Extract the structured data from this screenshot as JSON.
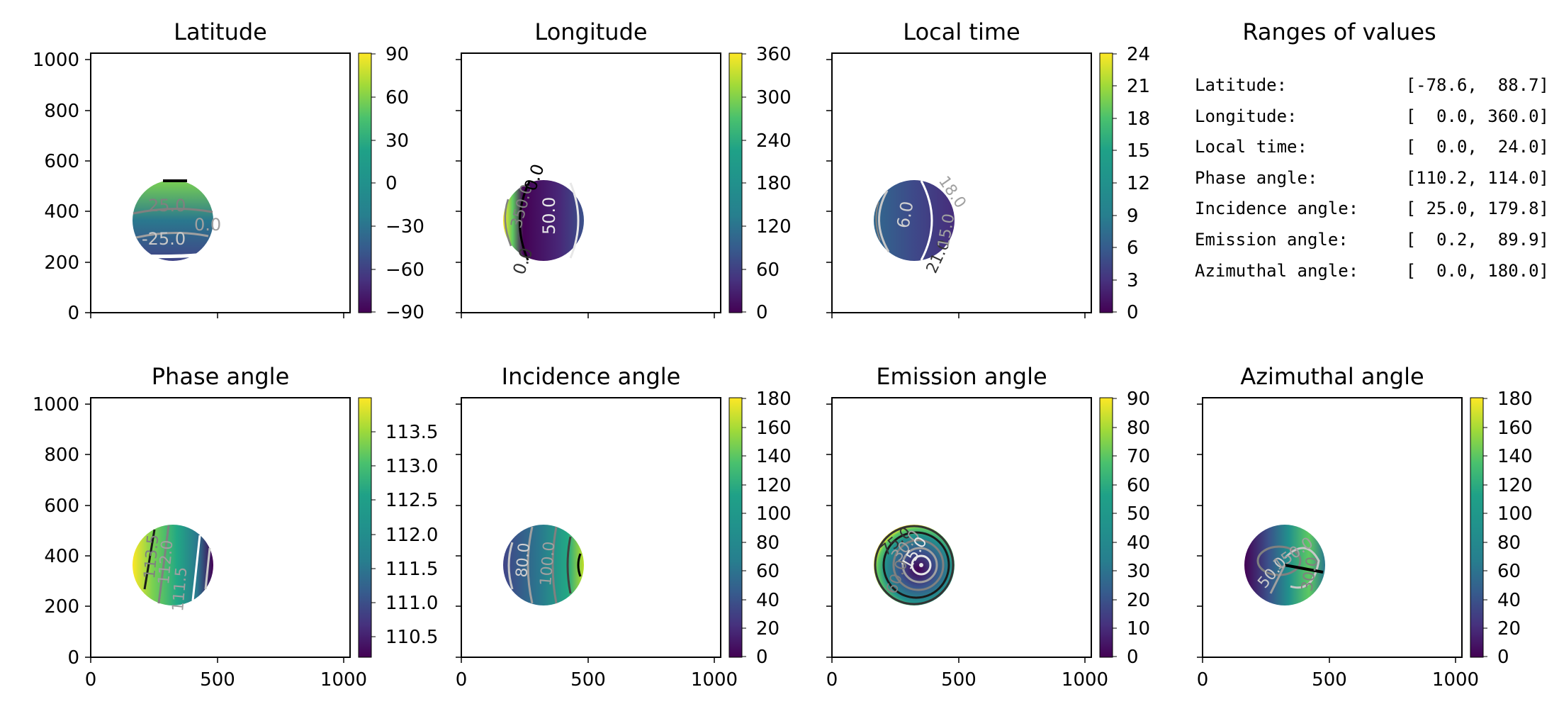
{
  "figure": {
    "panels": [
      {
        "id": "latitude",
        "title": "Latitude",
        "cmap_ticks": [
          "90",
          "60",
          "30",
          "0",
          "−30",
          "−60",
          "−90"
        ],
        "cmap_range": [
          -90,
          90
        ],
        "contour_labels": [
          "25.0",
          "-25.0",
          "0.0"
        ]
      },
      {
        "id": "longitude",
        "title": "Longitude",
        "cmap_ticks": [
          "360",
          "300",
          "240",
          "180",
          "120",
          "60",
          "0"
        ],
        "cmap_range": [
          0,
          360
        ],
        "contour_labels": [
          "50.0",
          "350.0",
          "0.0",
          "0.0"
        ]
      },
      {
        "id": "local_time",
        "title": "Local time",
        "cmap_ticks": [
          "24",
          "21",
          "18",
          "15",
          "12",
          "9",
          "6",
          "3",
          "0"
        ],
        "cmap_range": [
          0,
          24
        ],
        "contour_labels": [
          "6.0",
          "18.0",
          "21.0",
          "15.0"
        ]
      },
      {
        "id": "phase_angle",
        "title": "Phase angle",
        "cmap_ticks": [
          "113.5",
          "113.0",
          "112.5",
          "112.0",
          "111.5",
          "111.0",
          "110.5"
        ],
        "cmap_range": [
          110.2,
          114.0
        ],
        "contour_labels": [
          "112.0",
          "111.5",
          "113.5"
        ]
      },
      {
        "id": "incidence_angle",
        "title": "Incidence angle",
        "cmap_ticks": [
          "180",
          "160",
          "140",
          "120",
          "100",
          "80",
          "60",
          "40",
          "20",
          "0"
        ],
        "cmap_range": [
          0,
          180
        ],
        "contour_labels": [
          "80.0",
          "100.0"
        ]
      },
      {
        "id": "emission_angle",
        "title": "Emission angle",
        "cmap_ticks": [
          "90",
          "80",
          "70",
          "60",
          "50",
          "40",
          "30",
          "20",
          "10",
          "0"
        ],
        "cmap_range": [
          0,
          90
        ],
        "contour_labels": [
          "75.0",
          "30.0",
          "15.0",
          "60.0"
        ]
      },
      {
        "id": "azimuthal_angle",
        "title": "Azimuthal angle",
        "cmap_ticks": [
          "180",
          "160",
          "140",
          "120",
          "100",
          "80",
          "60",
          "40",
          "20",
          "0"
        ],
        "cmap_range": [
          0,
          180
        ],
        "contour_labels": [
          "50.0",
          "150.0",
          "30.0"
        ]
      }
    ]
  },
  "chart_data": {
    "type": "heatmap",
    "description_free": true,
    "axes": {
      "x_ticks": [
        "0",
        "500",
        "1000"
      ],
      "y_ticks": [
        "1000",
        "800",
        "600",
        "400",
        "200",
        "0"
      ],
      "xlim": [
        0,
        1024
      ],
      "ylim": [
        0,
        1024
      ]
    },
    "disk": {
      "center_x": 325,
      "center_y": 365,
      "radius": 160
    },
    "panels": [
      "Latitude",
      "Longitude",
      "Local time",
      "Phase angle",
      "Incidence angle",
      "Emission angle",
      "Azimuthal angle"
    ],
    "colormap": "viridis"
  },
  "ranges": {
    "title": "Ranges of values",
    "rows": [
      {
        "label": "Latitude:",
        "value": "[-78.6,  88.7]"
      },
      {
        "label": "Longitude:",
        "value": "[  0.0, 360.0]"
      },
      {
        "label": "Local time:",
        "value": "[  0.0,  24.0]"
      },
      {
        "label": "Phase angle:",
        "value": "[110.2, 114.0]"
      },
      {
        "label": "Incidence angle:",
        "value": "[ 25.0, 179.8]"
      },
      {
        "label": "Emission angle:",
        "value": "[  0.2,  89.9]"
      },
      {
        "label": "Azimuthal angle:",
        "value": "[  0.0, 180.0]"
      }
    ]
  }
}
